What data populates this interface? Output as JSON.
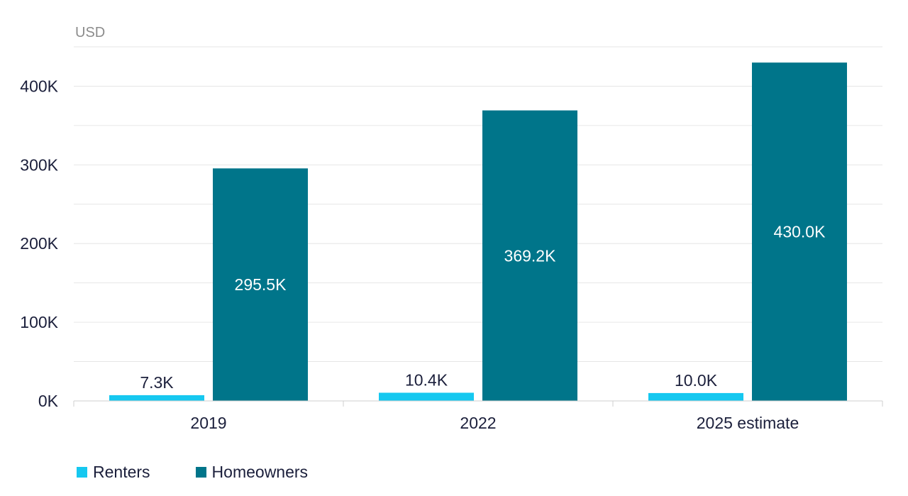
{
  "chart_data": {
    "type": "bar",
    "unit_label": "USD",
    "categories": [
      "2019",
      "2022",
      "2025 estimate"
    ],
    "series": [
      {
        "name": "Renters",
        "color": "#16c8f0",
        "values": [
          7300,
          10400,
          10000
        ],
        "labels": [
          "7.3K",
          "10.4K",
          "10.0K"
        ]
      },
      {
        "name": "Homeowners",
        "color": "#00758a",
        "values": [
          295500,
          369200,
          430000
        ],
        "labels": [
          "295.5K",
          "369.2K",
          "430.0K"
        ]
      }
    ],
    "ylim": [
      0,
      450000
    ],
    "yticks": [
      {
        "value": 0,
        "label": "0K"
      },
      {
        "value": 100000,
        "label": "100K"
      },
      {
        "value": 200000,
        "label": "200K"
      },
      {
        "value": 300000,
        "label": "300K"
      },
      {
        "value": 400000,
        "label": "400K"
      }
    ],
    "grid": true,
    "legend_position": "bottom-left"
  }
}
